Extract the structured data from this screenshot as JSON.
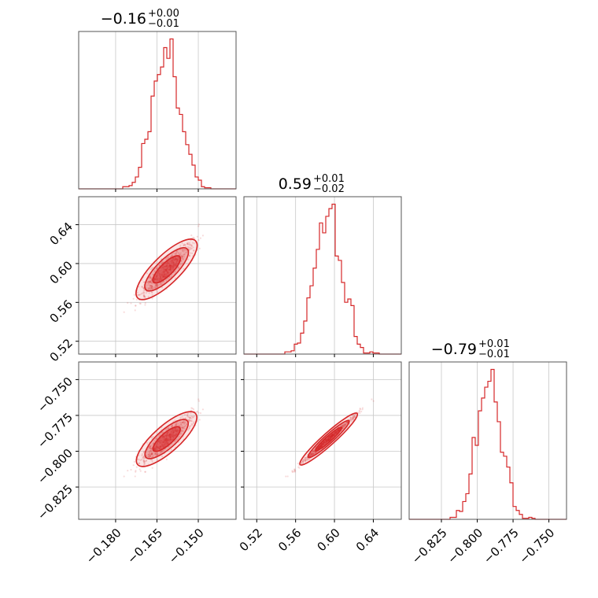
{
  "chart_data": {
    "type": "corner",
    "color": "#d62728",
    "parameters": [
      {
        "median": "−0.16",
        "err_plus": "+0.00",
        "err_minus": "−0.01",
        "range": [
          -0.1934,
          -0.1363
        ],
        "ticks": [
          -0.18,
          -0.165,
          -0.15
        ],
        "tick_labels": [
          "−0.180",
          "−0.165",
          "−0.150"
        ],
        "mean": -0.1615,
        "sd": 0.005
      },
      {
        "median": "0.59",
        "err_plus": "+0.01",
        "err_minus": "−0.02",
        "range": [
          0.5068,
          0.6688
        ],
        "ticks": [
          0.52,
          0.56,
          0.6,
          0.64
        ],
        "tick_labels": [
          "0.52",
          "0.56",
          "0.60",
          "0.64"
        ],
        "mean": 0.594,
        "sd": 0.014
      },
      {
        "median": "−0.79",
        "err_plus": "+0.01",
        "err_minus": "−0.01",
        "range": [
          -0.8475,
          -0.7377
        ],
        "ticks": [
          -0.825,
          -0.8,
          -0.775,
          -0.75
        ],
        "tick_labels": [
          "−0.825",
          "−0.800",
          "−0.775",
          "−0.750"
        ],
        "mean": -0.7915,
        "sd": 0.0085
      }
    ]
  }
}
